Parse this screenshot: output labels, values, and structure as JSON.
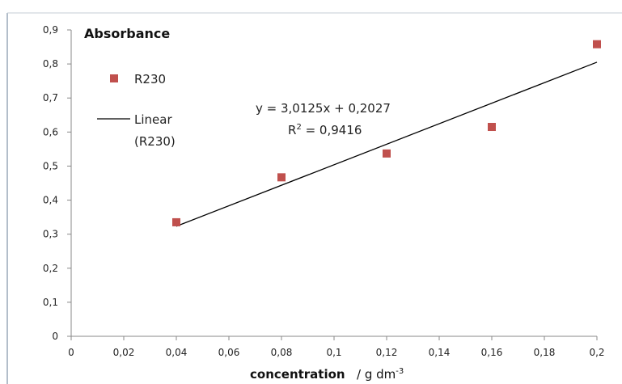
{
  "chart_data": {
    "type": "scatter",
    "title": "",
    "ylabel": "Absorbance",
    "xlabel": "concentration",
    "xlabel_unit_prefix": "/ g dm",
    "xlabel_unit_exp": "-3",
    "xlim": [
      0,
      0.2
    ],
    "ylim": [
      0,
      0.9
    ],
    "xticks": [
      0,
      0.02,
      0.04,
      0.06,
      0.08,
      0.1,
      0.12,
      0.14,
      0.16,
      0.18,
      0.2
    ],
    "xtick_labels": [
      "0",
      "0,02",
      "0,04",
      "0,06",
      "0,08",
      "0,1",
      "0,12",
      "0,14",
      "0,16",
      "0,18",
      "0,2"
    ],
    "yticks": [
      0,
      0.1,
      0.2,
      0.3,
      0.4,
      0.5,
      0.6,
      0.7,
      0.8,
      0.9
    ],
    "ytick_labels": [
      "0",
      "0,1",
      "0,2",
      "0,3",
      "0,4",
      "0,5",
      "0,6",
      "0,7",
      "0,8",
      "0,9"
    ],
    "grid": false,
    "legend_position": "left",
    "series": [
      {
        "name": "R230",
        "color": "#c0504d",
        "marker": "square",
        "points": [
          {
            "x": 0.04,
            "y": 0.335
          },
          {
            "x": 0.08,
            "y": 0.467
          },
          {
            "x": 0.12,
            "y": 0.537
          },
          {
            "x": 0.16,
            "y": 0.615
          },
          {
            "x": 0.2,
            "y": 0.858
          }
        ]
      }
    ],
    "trendline": {
      "name_line1": "Linear",
      "name_line2": "(R230)",
      "slope": 3.0125,
      "intercept": 0.2027,
      "x_range": [
        0.04,
        0.2
      ],
      "color": "#000000"
    },
    "annotations": {
      "equation": "y = 3,0125x + 0,2027",
      "r2_prefix": "R",
      "r2_sup": "2",
      "r2_suffix": " = 0,9416"
    }
  }
}
